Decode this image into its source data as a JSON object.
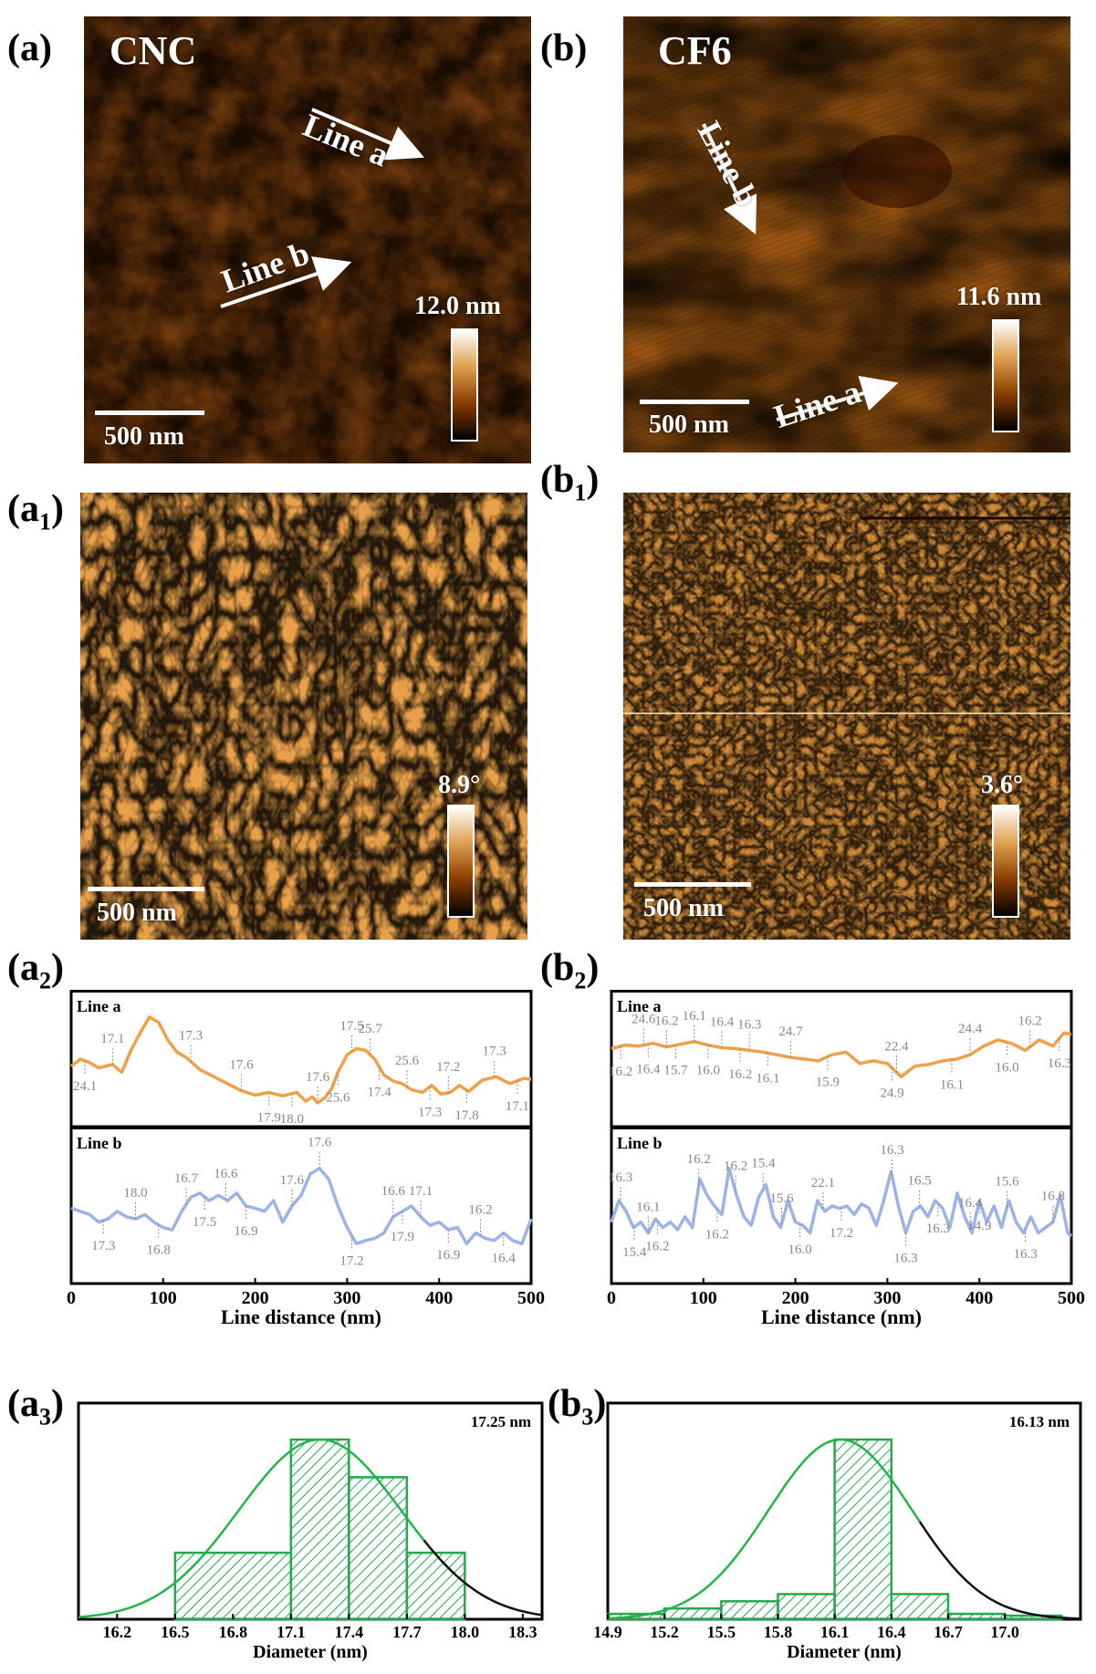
{
  "panels": {
    "a": {
      "label": "(a)",
      "sample": "CNC",
      "line_a": "Line a",
      "line_b": "Line b",
      "scale": "500 nm",
      "height": "12.0 nm"
    },
    "b": {
      "label": "(b)",
      "sample": "CF6",
      "line_a": "Line a",
      "line_b": "Line b",
      "scale": "500 nm",
      "height": "11.6 nm"
    },
    "a1": {
      "label_main": "(a",
      "label_sub": "1",
      "label_end": ")",
      "scale": "500 nm",
      "phase": "8.9°"
    },
    "b1": {
      "label_main": "(b",
      "label_sub": "1",
      "label_end": ")",
      "scale": "500 nm",
      "phase": "3.6°"
    },
    "a2": {
      "label_main": "(a",
      "label_sub": "2",
      "label_end": ")"
    },
    "b2": {
      "label_main": "(b",
      "label_sub": "2",
      "label_end": ")"
    },
    "a3": {
      "label_main": "(a",
      "label_sub": "3",
      "label_end": ")"
    },
    "b3": {
      "label_main": "(b",
      "label_sub": "3",
      "label_end": ")"
    }
  },
  "colors": {
    "line_a": "#f0a048",
    "line_b": "#9bb3e6",
    "hist": "#27a84f",
    "fit": "#21b64a",
    "fit_tail": "#111111",
    "annot": "#888888"
  },
  "chart_data": [
    {
      "id": "a2",
      "type": "line",
      "xlabel": "Line distance (nm)",
      "xlim": [
        0,
        500
      ],
      "xticks": [
        0,
        100,
        200,
        300,
        400,
        500
      ],
      "series": [
        {
          "name": "Line a",
          "x": [
            0,
            10,
            20,
            30,
            45,
            55,
            65,
            75,
            85,
            95,
            105,
            115,
            125,
            140,
            155,
            170,
            185,
            200,
            215,
            230,
            245,
            255,
            262,
            268,
            276,
            283,
            290,
            300,
            310,
            320,
            330,
            340,
            350,
            360,
            370,
            382,
            392,
            402,
            412,
            422,
            432,
            447,
            462,
            477,
            492,
            500
          ],
          "y": [
            0.42,
            0.5,
            0.46,
            0.4,
            0.44,
            0.35,
            0.6,
            0.8,
            0.98,
            0.92,
            0.72,
            0.58,
            0.52,
            0.38,
            0.3,
            0.22,
            0.14,
            0.09,
            0.12,
            0.08,
            0.12,
            0.02,
            0.07,
            0.0,
            0.06,
            0.16,
            0.35,
            0.55,
            0.62,
            0.6,
            0.5,
            0.32,
            0.25,
            0.22,
            0.15,
            0.12,
            0.2,
            0.1,
            0.12,
            0.2,
            0.13,
            0.26,
            0.3,
            0.22,
            0.28,
            0.27
          ],
          "labels": [
            {
              "x": 15,
              "text": "24.1",
              "pos": "below"
            },
            {
              "x": 45,
              "text": "17.1",
              "pos": "above"
            },
            {
              "x": 130,
              "text": "17.3",
              "pos": "above"
            },
            {
              "x": 185,
              "text": "17.6",
              "pos": "above"
            },
            {
              "x": 215,
              "text": "17.9",
              "pos": "below"
            },
            {
              "x": 240,
              "text": "18.0",
              "pos": "below"
            },
            {
              "x": 268,
              "text": "17.6",
              "pos": "above"
            },
            {
              "x": 290,
              "text": "25.6",
              "pos": "below"
            },
            {
              "x": 305,
              "text": "17.5",
              "pos": "above"
            },
            {
              "x": 325,
              "text": "25.7",
              "pos": "above"
            },
            {
              "x": 335,
              "text": "17.4",
              "pos": "below"
            },
            {
              "x": 365,
              "text": "25.6",
              "pos": "above"
            },
            {
              "x": 390,
              "text": "17.3",
              "pos": "below"
            },
            {
              "x": 410,
              "text": "17.2",
              "pos": "above"
            },
            {
              "x": 430,
              "text": "17.8",
              "pos": "below"
            },
            {
              "x": 460,
              "text": "17.3",
              "pos": "above"
            },
            {
              "x": 485,
              "text": "17.1",
              "pos": "below"
            }
          ]
        },
        {
          "name": "Line b",
          "x": [
            0,
            10,
            20,
            30,
            40,
            50,
            60,
            70,
            80,
            90,
            100,
            110,
            120,
            130,
            140,
            150,
            160,
            170,
            180,
            190,
            200,
            210,
            220,
            230,
            240,
            250,
            260,
            270,
            280,
            290,
            300,
            310,
            320,
            330,
            340,
            350,
            360,
            370,
            380,
            390,
            400,
            410,
            420,
            430,
            440,
            450,
            460,
            470,
            480,
            490,
            500
          ],
          "y": [
            0.48,
            0.45,
            0.42,
            0.35,
            0.38,
            0.45,
            0.4,
            0.38,
            0.42,
            0.35,
            0.3,
            0.28,
            0.45,
            0.58,
            0.62,
            0.55,
            0.6,
            0.55,
            0.62,
            0.5,
            0.48,
            0.45,
            0.55,
            0.35,
            0.5,
            0.6,
            0.8,
            0.85,
            0.75,
            0.5,
            0.3,
            0.15,
            0.18,
            0.2,
            0.25,
            0.4,
            0.45,
            0.5,
            0.4,
            0.32,
            0.35,
            0.28,
            0.3,
            0.15,
            0.25,
            0.2,
            0.18,
            0.25,
            0.18,
            0.15,
            0.38
          ]
        },
        {
          "name": "Line b labels",
          "x": [],
          "y": [],
          "labels": [
            {
              "x": 35,
              "text": "17.3",
              "pos": "below"
            },
            {
              "x": 70,
              "text": "18.0",
              "pos": "above"
            },
            {
              "x": 95,
              "text": "16.8",
              "pos": "below"
            },
            {
              "x": 125,
              "text": "16.7",
              "pos": "above"
            },
            {
              "x": 145,
              "text": "17.5",
              "pos": "below"
            },
            {
              "x": 168,
              "text": "16.6",
              "pos": "above"
            },
            {
              "x": 190,
              "text": "16.9",
              "pos": "below"
            },
            {
              "x": 240,
              "text": "17.6",
              "pos": "above"
            },
            {
              "x": 270,
              "text": "17.6",
              "pos": "above"
            },
            {
              "x": 305,
              "text": "17.2",
              "pos": "below"
            },
            {
              "x": 350,
              "text": "16.6",
              "pos": "above"
            },
            {
              "x": 360,
              "text": "17.9",
              "pos": "below"
            },
            {
              "x": 380,
              "text": "17.1",
              "pos": "above"
            },
            {
              "x": 410,
              "text": "16.9",
              "pos": "below"
            },
            {
              "x": 445,
              "text": "16.2",
              "pos": "above"
            },
            {
              "x": 470,
              "text": "16.4",
              "pos": "below"
            }
          ]
        }
      ]
    },
    {
      "id": "b2",
      "type": "line",
      "xlabel": "Line distance (nm)",
      "xlim": [
        0,
        500
      ],
      "xticks": [
        0,
        100,
        200,
        300,
        400,
        500
      ],
      "series": [
        {
          "name": "Line a",
          "x": [
            0,
            15,
            30,
            45,
            60,
            75,
            90,
            105,
            120,
            135,
            150,
            165,
            180,
            195,
            210,
            225,
            240,
            255,
            270,
            285,
            300,
            315,
            330,
            345,
            360,
            375,
            390,
            405,
            420,
            435,
            450,
            465,
            480,
            492,
            500
          ],
          "y": [
            0.62,
            0.66,
            0.65,
            0.68,
            0.64,
            0.67,
            0.7,
            0.66,
            0.63,
            0.62,
            0.6,
            0.58,
            0.55,
            0.52,
            0.5,
            0.48,
            0.55,
            0.58,
            0.45,
            0.48,
            0.45,
            0.3,
            0.42,
            0.44,
            0.48,
            0.5,
            0.55,
            0.65,
            0.72,
            0.68,
            0.6,
            0.72,
            0.65,
            0.8,
            0.78
          ],
          "labels": [
            {
              "x": 10,
              "text": "16.2",
              "pos": "below"
            },
            {
              "x": 35,
              "text": "24.6",
              "pos": "above"
            },
            {
              "x": 40,
              "text": "16.4",
              "pos": "below"
            },
            {
              "x": 60,
              "text": "16.2",
              "pos": "above"
            },
            {
              "x": 70,
              "text": "15.7",
              "pos": "below"
            },
            {
              "x": 90,
              "text": "16.1",
              "pos": "above"
            },
            {
              "x": 105,
              "text": "16.0",
              "pos": "below"
            },
            {
              "x": 120,
              "text": "16.4",
              "pos": "above"
            },
            {
              "x": 140,
              "text": "16.2",
              "pos": "below"
            },
            {
              "x": 150,
              "text": "16.3",
              "pos": "above"
            },
            {
              "x": 170,
              "text": "16.1",
              "pos": "below"
            },
            {
              "x": 195,
              "text": "24.7",
              "pos": "above"
            },
            {
              "x": 235,
              "text": "15.9",
              "pos": "below"
            },
            {
              "x": 305,
              "text": "24.9",
              "pos": "below"
            },
            {
              "x": 310,
              "text": "22.4",
              "pos": "above"
            },
            {
              "x": 370,
              "text": "16.1",
              "pos": "below"
            },
            {
              "x": 390,
              "text": "24.4",
              "pos": "above"
            },
            {
              "x": 430,
              "text": "16.0",
              "pos": "below"
            },
            {
              "x": 455,
              "text": "16.2",
              "pos": "above"
            },
            {
              "x": 487,
              "text": "16.3",
              "pos": "below"
            }
          ]
        },
        {
          "name": "Line b",
          "x": [
            0,
            8,
            16,
            24,
            32,
            40,
            48,
            56,
            64,
            72,
            80,
            88,
            96,
            104,
            112,
            120,
            128,
            136,
            144,
            152,
            160,
            168,
            176,
            184,
            192,
            200,
            208,
            216,
            224,
            232,
            240,
            248,
            256,
            264,
            272,
            280,
            288,
            296,
            304,
            312,
            320,
            328,
            336,
            344,
            352,
            360,
            368,
            376,
            384,
            392,
            400,
            408,
            416,
            424,
            432,
            440,
            448,
            456,
            464,
            472,
            480,
            488,
            496,
            500
          ],
          "y": [
            0.35,
            0.55,
            0.45,
            0.3,
            0.35,
            0.25,
            0.38,
            0.3,
            0.35,
            0.28,
            0.4,
            0.3,
            0.75,
            0.6,
            0.5,
            0.42,
            0.85,
            0.6,
            0.4,
            0.32,
            0.58,
            0.7,
            0.4,
            0.3,
            0.55,
            0.35,
            0.32,
            0.25,
            0.55,
            0.45,
            0.5,
            0.48,
            0.5,
            0.42,
            0.52,
            0.48,
            0.32,
            0.55,
            0.82,
            0.5,
            0.25,
            0.45,
            0.5,
            0.4,
            0.55,
            0.48,
            0.3,
            0.62,
            0.4,
            0.25,
            0.55,
            0.35,
            0.5,
            0.3,
            0.55,
            0.35,
            0.25,
            0.4,
            0.25,
            0.3,
            0.35,
            0.6,
            0.25,
            0.22
          ]
        },
        {
          "name": "Line b labels",
          "x": [],
          "y": [],
          "labels": [
            {
              "x": 10,
              "text": "16.3",
              "pos": "above"
            },
            {
              "x": 25,
              "text": "15.4",
              "pos": "below"
            },
            {
              "x": 40,
              "text": "16.1",
              "pos": "above"
            },
            {
              "x": 50,
              "text": "16.2",
              "pos": "below"
            },
            {
              "x": 95,
              "text": "16.2",
              "pos": "above"
            },
            {
              "x": 115,
              "text": "16.2",
              "pos": "below"
            },
            {
              "x": 135,
              "text": "16.2",
              "pos": "above"
            },
            {
              "x": 165,
              "text": "15.4",
              "pos": "above"
            },
            {
              "x": 185,
              "text": "15.6",
              "pos": "above"
            },
            {
              "x": 205,
              "text": "16.0",
              "pos": "below"
            },
            {
              "x": 230,
              "text": "22.1",
              "pos": "above"
            },
            {
              "x": 250,
              "text": "17.2",
              "pos": "below"
            },
            {
              "x": 305,
              "text": "16.3",
              "pos": "above"
            },
            {
              "x": 320,
              "text": "16.3",
              "pos": "below"
            },
            {
              "x": 335,
              "text": "16.5",
              "pos": "above"
            },
            {
              "x": 355,
              "text": "16.3",
              "pos": "below"
            },
            {
              "x": 390,
              "text": "16.4",
              "pos": "above"
            },
            {
              "x": 400,
              "text": "14.9",
              "pos": "below"
            },
            {
              "x": 430,
              "text": "15.6",
              "pos": "above"
            },
            {
              "x": 450,
              "text": "16.3",
              "pos": "below"
            },
            {
              "x": 480,
              "text": "16.8",
              "pos": "above"
            }
          ]
        }
      ]
    },
    {
      "id": "a3",
      "type": "bar",
      "title": "17.25 nm",
      "xlabel": "Diameter (nm)",
      "xlim": [
        16.0,
        18.4
      ],
      "xticks": [
        16.2,
        16.5,
        16.8,
        17.1,
        17.4,
        17.7,
        18.0,
        18.3
      ],
      "bins": [
        [
          16.5,
          17.1
        ],
        [
          17.1,
          17.4
        ],
        [
          17.4,
          17.7
        ],
        [
          17.7,
          18.0
        ]
      ],
      "values": [
        0.37,
        1.0,
        0.79,
        0.37
      ],
      "fit": {
        "mean": 17.25,
        "sigma": 0.42,
        "peak": 1.0,
        "split_x": 17.8
      }
    },
    {
      "id": "b3",
      "type": "bar",
      "title": "16.13 nm",
      "xlabel": "Diameter (nm)",
      "xlim": [
        14.9,
        17.4
      ],
      "xticks": [
        14.9,
        15.2,
        15.5,
        15.8,
        16.1,
        16.4,
        16.7,
        17.0
      ],
      "bins": [
        [
          14.9,
          15.2
        ],
        [
          15.2,
          15.5
        ],
        [
          15.5,
          15.8
        ],
        [
          15.8,
          16.1
        ],
        [
          16.1,
          16.4
        ],
        [
          16.4,
          16.7
        ],
        [
          16.7,
          17.0
        ],
        [
          17.0,
          17.3
        ]
      ],
      "values": [
        0.03,
        0.06,
        0.1,
        0.14,
        1.0,
        0.14,
        0.03,
        0.02
      ],
      "fit": {
        "mean": 16.13,
        "sigma": 0.38,
        "peak": 1.0,
        "split_x": 16.55
      }
    }
  ]
}
